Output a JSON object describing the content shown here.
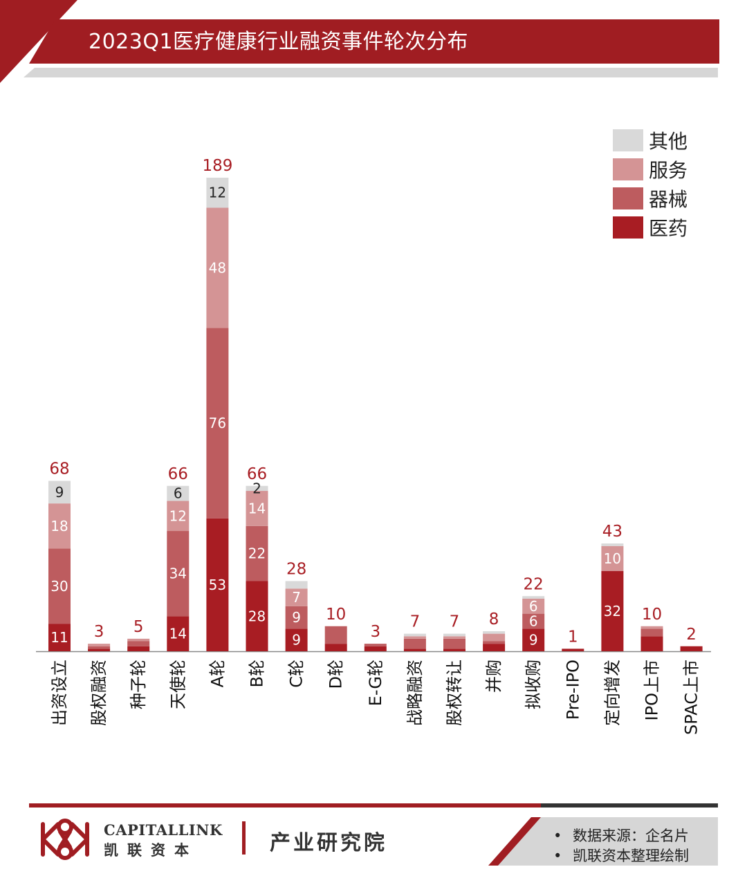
{
  "title": "2023Q1医疗健康行业融资事件轮次分布",
  "legend": [
    {
      "key": "other",
      "label": "其他",
      "color": "#d9d9d9"
    },
    {
      "key": "service",
      "label": "服务",
      "color": "#d49495"
    },
    {
      "key": "device",
      "label": "器械",
      "color": "#bd5c5f"
    },
    {
      "key": "pharma",
      "label": "医药",
      "color": "#a81d23"
    }
  ],
  "chart_data": {
    "type": "bar",
    "stacked": true,
    "title": "2023Q1医疗健康行业融资事件轮次分布",
    "categories": [
      "出资设立",
      "股权融资",
      "种子轮",
      "天使轮",
      "A轮",
      "B轮",
      "C轮",
      "D轮",
      "E-G轮",
      "战略融资",
      "股权转让",
      "并购",
      "拟收购",
      "Pre-IPO",
      "定向增发",
      "IPO上市",
      "SPAC上市"
    ],
    "series": [
      {
        "name": "医药",
        "values": [
          11,
          1,
          2,
          14,
          53,
          28,
          9,
          3,
          2,
          1,
          1,
          3,
          9,
          1,
          32,
          6,
          2
        ]
      },
      {
        "name": "器械",
        "values": [
          30,
          1,
          2,
          34,
          76,
          22,
          9,
          7,
          1,
          4,
          4,
          1,
          6,
          0,
          0,
          3,
          0
        ]
      },
      {
        "name": "服务",
        "values": [
          18,
          1,
          1,
          12,
          48,
          14,
          7,
          0,
          0,
          1,
          1,
          3,
          6,
          0,
          10,
          1,
          0
        ]
      },
      {
        "name": "其他",
        "values": [
          9,
          0,
          0,
          6,
          12,
          2,
          3,
          0,
          0,
          1,
          1,
          1,
          1,
          0,
          1,
          0,
          0
        ]
      }
    ],
    "segment_labels": [
      [
        "11",
        "",
        "",
        "14",
        "53",
        "28",
        "9",
        "",
        "",
        "",
        "",
        "",
        "9",
        "",
        "32",
        "",
        ""
      ],
      [
        "30",
        "",
        "",
        "34",
        "76",
        "22",
        "9",
        "",
        "",
        "",
        "",
        "",
        "6",
        "",
        "",
        "",
        ""
      ],
      [
        "18",
        "",
        "",
        "12",
        "48",
        "14",
        "7",
        "",
        "",
        "",
        "",
        "",
        "6",
        "",
        "10",
        "",
        ""
      ],
      [
        "9",
        "",
        "",
        "6",
        "12",
        "2",
        "",
        "",
        "",
        "",
        "",
        "",
        "",
        "",
        "",
        "",
        ""
      ]
    ],
    "totals": [
      68,
      3,
      5,
      66,
      189,
      66,
      28,
      10,
      3,
      7,
      7,
      8,
      22,
      1,
      43,
      10,
      2
    ],
    "ylim": [
      0,
      189
    ],
    "grid": false,
    "legend_position": "top-right"
  },
  "footer": {
    "brand_en": "CAPITALLINK",
    "brand_cn": "凯联资本",
    "institute": "产业研究院",
    "sources": [
      "数据来源：企名片",
      "凯联资本整理绘制"
    ]
  }
}
